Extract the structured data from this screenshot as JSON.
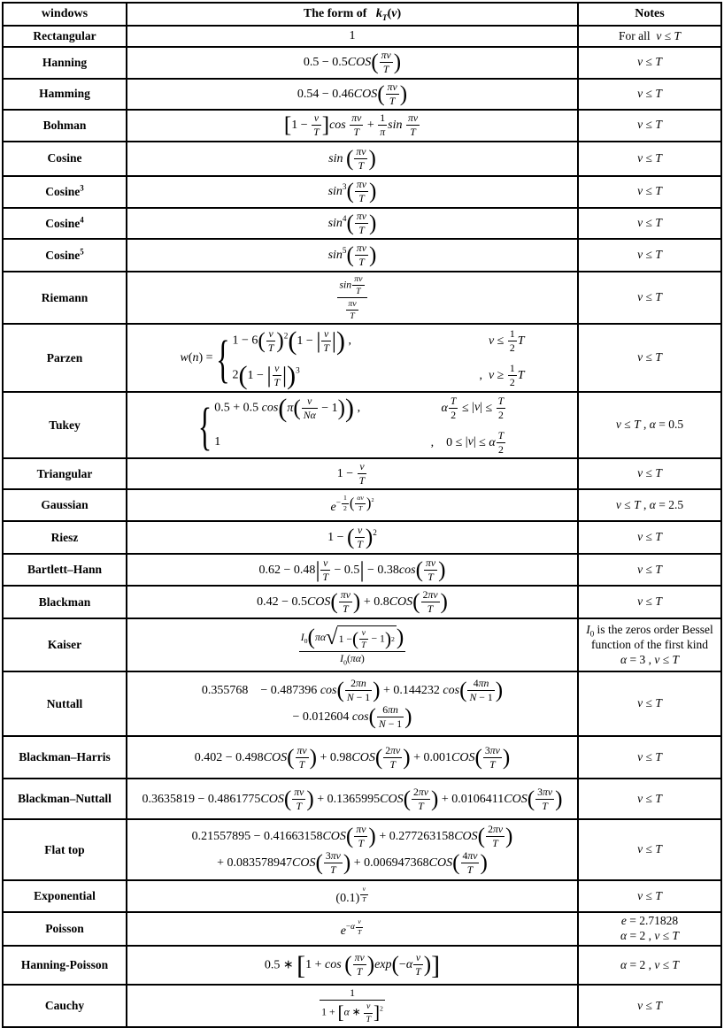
{
  "colors": {
    "border": "#000000",
    "background": "#ffffff",
    "text": "#000000"
  },
  "columns": {
    "windows": "\\t{windows}",
    "form": "\\t{The form of }  k\\d{T}(v)",
    "notes": "\\t{Notes}"
  },
  "rows": [
    {
      "name": "Rectangular",
      "formula": [
        "1"
      ],
      "notes": [
        "\\t{For all } v ≤ T"
      ]
    },
    {
      "name": "Hanning",
      "formula": [
        "0.5 − 0.5COS\\p{\\f{πv}{T}}"
      ],
      "notes": [
        "v ≤ T"
      ]
    },
    {
      "name": "Hamming",
      "formula": [
        "0.54 − 0.46COS\\p{\\f{πv}{T}}"
      ],
      "notes": [
        "v ≤ T"
      ]
    },
    {
      "name": "Bohman",
      "formula": [
        "\\k{1 − \\f{v}{T}}cos \\f{πv}{T} + \\f{1}{π}sin \\f{πv}{T}"
      ],
      "notes": [
        "v ≤ T"
      ]
    },
    {
      "name": "Cosine",
      "formula": [
        "sin \\p{\\f{πv}{T}}"
      ],
      "notes": [
        "v ≤ T"
      ]
    },
    {
      "name": "Cosine\\s{3}",
      "formula": [
        "sin\\s{3}\\p{\\f{πv}{T}}"
      ],
      "notes": [
        "v ≤ T"
      ]
    },
    {
      "name": "Cosine\\s{4}",
      "formula": [
        "sin\\s{4}\\p{\\f{πv}{T}}"
      ],
      "notes": [
        "v ≤ T"
      ]
    },
    {
      "name": "Cosine\\s{5}",
      "formula": [
        "sin\\s{5}\\p{\\f{πv}{T}}"
      ],
      "notes": [
        "v ≤ T"
      ]
    },
    {
      "name": "Riemann",
      "formula": [
        "\\f{sin\\f{πv}{T}}{\\f{πv}{T}}"
      ],
      "notes": [
        "v ≤ T"
      ]
    },
    {
      "name": "Parzen",
      "formula": [
        "w(n) = \\c{1 − 6\\p{\\f{v}{T}}\\s{2}\\p{1 − \\a{\\f{v}{T}}} ,}{v ≤ \\f{1}{2}T}{2\\p{1 − \\a{\\f{v}{T}}}\\s{3}}{,  v ≥ \\f{1}{2}T}"
      ],
      "notes": [
        "v ≤ T"
      ]
    },
    {
      "name": "Tukey",
      "formula": [
        "\\c{0.5 + 0.5 cos\\p{π\\p{\\f{v}{Nα} − 1}} ,}{α\\f{T}{2} ≤ \\a{v} ≤ \\f{T}{2}}{1}{,    0 ≤ \\a{v} ≤ α\\f{T}{2}}"
      ],
      "notes": [
        "v ≤ T , α = 0.5"
      ]
    },
    {
      "name": "Triangular",
      "formula": [
        "1 − \\f{v}{T}"
      ],
      "notes": [
        "v ≤ T"
      ]
    },
    {
      "name": "Gaussian",
      "formula": [
        "e\\s{−\\f{1}{2}\\p{\\f{αv}{T}}\\s{2}}"
      ],
      "notes": [
        "v ≤ T , α = 2.5"
      ]
    },
    {
      "name": "Riesz",
      "formula": [
        "1 − \\p{\\f{v}{T}}\\s{2}"
      ],
      "notes": [
        "v ≤ T"
      ]
    },
    {
      "name": "Bartlett–Hann",
      "formula": [
        "0.62 − 0.48\\a{\\f{v}{T} − 0.5} − 0.38cos\\p{\\f{πv}{T}}"
      ],
      "notes": [
        "v ≤ T"
      ]
    },
    {
      "name": "Blackman",
      "formula": [
        "0.42 − 0.5COS\\p{\\f{πv}{T}} + 0.8COS\\p{\\f{2πv}{T}}"
      ],
      "notes": [
        "v ≤ T"
      ]
    },
    {
      "name": "Kaiser",
      "formula": [
        "\\f{I\\d{0}\\p{πα\\r{1 − \\p{\\f{v}{T} − 1}\\s{2}}}}{I\\d{0}(πα)}"
      ],
      "notes": [
        "I\\d{0}\\t{ is the zeros order Bessel function of the first kind}",
        "α = 3 , v ≤ T"
      ]
    },
    {
      "name": "Nuttall",
      "formula": [
        "0.355768    − 0.487396 cos\\p{\\f{2πn}{N − 1}} + 0.144232 cos\\p{\\f{4πn}{N − 1}}",
        "− 0.012604 cos\\p{\\f{6πn}{N − 1}}"
      ],
      "notes": [
        "v ≤ T"
      ]
    },
    {
      "name": "Blackman–Harris",
      "formula": [
        "0.402 − 0.498COS\\p{\\f{πv}{T}} + 0.98COS\\p{\\f{2πv}{T}} + 0.001COS\\p{\\f{3πv}{T}}"
      ],
      "notes": [
        "v ≤ T"
      ]
    },
    {
      "name": "Blackman–Nuttall",
      "formula": [
        "0.3635819 − 0.4861775COS\\p{\\f{πv}{T}} + 0.1365995COS\\p{\\f{2πv}{T}} + 0.0106411COS\\p{\\f{3πv}{T}}"
      ],
      "notes": [
        "v ≤ T"
      ]
    },
    {
      "name": "Flat top",
      "formula": [
        "0.21557895 − 0.41663158COS\\p{\\f{πv}{T}} + 0.277263158COS\\p{\\f{2πv}{T}}",
        "+ 0.083578947COS\\p{\\f{3πv}{T}} + 0.006947368COS\\p{\\f{4πv}{T}}"
      ],
      "notes": [
        "v ≤ T"
      ]
    },
    {
      "name": "Exponential",
      "formula": [
        "(0.1)\\s{\\f{v}{T}}"
      ],
      "notes": [
        "v ≤ T"
      ]
    },
    {
      "name": "Poisson",
      "formula": [
        "e\\s{−α\\f{v}{T}}"
      ],
      "notes": [
        "e = 2.71828",
        "α = 2 , v ≤ T"
      ]
    },
    {
      "name": "Hanning-Poisson",
      "formula": [
        "0.5 ∗ \\k{1 + cos \\p{\\f{πv}{T}}exp\\p{−α\\f{v}{T}}}"
      ],
      "notes": [
        "α = 2 , v ≤ T"
      ]
    },
    {
      "name": "Cauchy",
      "formula": [
        "\\f{1}{1 + \\k{α ∗ \\f{v}{T}}\\s{2}}"
      ],
      "notes": [
        "v ≤ T"
      ]
    }
  ]
}
